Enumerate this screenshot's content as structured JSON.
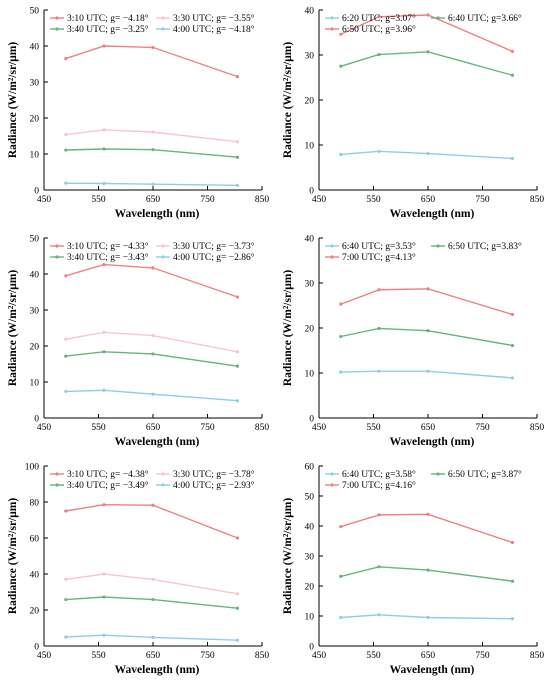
{
  "colors": {
    "red": "#f08080",
    "pink": "#f7c6cc",
    "green": "#6ab27e",
    "blue": "#8ecde6"
  },
  "chart_data": [
    {
      "type": "line",
      "xlabel": "Wavelength (nm)",
      "ylabel": "Radiance (W/m²/sr/μm)",
      "xlim": [
        450,
        850
      ],
      "ylim": [
        0,
        50
      ],
      "xticks": [
        450,
        550,
        650,
        750,
        850
      ],
      "yticks": [
        0,
        10,
        20,
        30,
        40,
        50
      ],
      "x": [
        490,
        560,
        650,
        805
      ],
      "legend_cols": 2,
      "series": [
        {
          "name": "3:10 UTC; g= −4.18°",
          "color": "#f08080",
          "values": [
            36.5,
            40.0,
            39.6,
            31.5
          ]
        },
        {
          "name": "3:30 UTC; g= −3.55°",
          "color": "#f7c6cc",
          "values": [
            15.4,
            16.7,
            16.1,
            13.4
          ]
        },
        {
          "name": "3:40 UTC; g= −3.25°",
          "color": "#6ab27e",
          "values": [
            11.1,
            11.4,
            11.2,
            9.1
          ]
        },
        {
          "name": "4:00 UTC; g= −4.18°",
          "color": "#8ecde6",
          "values": [
            1.9,
            1.8,
            1.6,
            1.3
          ]
        }
      ]
    },
    {
      "type": "line",
      "xlabel": "Wavelength (nm)",
      "ylabel": "Radiance (W/m²/sr/μm)",
      "xlim": [
        450,
        850
      ],
      "ylim": [
        0,
        40
      ],
      "xticks": [
        450,
        550,
        650,
        750,
        850
      ],
      "yticks": [
        0,
        10,
        20,
        30,
        40
      ],
      "x": [
        490,
        560,
        650,
        805
      ],
      "legend_cols": 2,
      "series": [
        {
          "name": "6:20 UTC; g=3.07°",
          "color": "#8ecde6",
          "values": [
            7.9,
            8.6,
            8.1,
            7.0
          ]
        },
        {
          "name": "6:40 UTC; g=3.66°",
          "color": "#6ab27e",
          "values": [
            27.5,
            30.1,
            30.7,
            25.5
          ]
        },
        {
          "name": "6:50 UTC; g=3.96°",
          "color": "#f08080",
          "values": [
            34.6,
            38.5,
            38.9,
            30.8
          ]
        }
      ]
    },
    {
      "type": "line",
      "xlabel": "Wavelength (nm)",
      "ylabel": "Radiance (W/m²/sr/μm)",
      "xlim": [
        450,
        850
      ],
      "ylim": [
        0,
        50
      ],
      "xticks": [
        450,
        550,
        650,
        750,
        850
      ],
      "yticks": [
        0,
        10,
        20,
        30,
        40,
        50
      ],
      "x": [
        490,
        560,
        650,
        805
      ],
      "legend_cols": 2,
      "series": [
        {
          "name": "3:10 UTC; g= −4.33°",
          "color": "#f08080",
          "values": [
            39.5,
            42.6,
            41.7,
            33.6
          ]
        },
        {
          "name": "3:30 UTC; g= −3.73°",
          "color": "#f7c6cc",
          "values": [
            21.9,
            23.8,
            22.9,
            18.4
          ]
        },
        {
          "name": "3:40 UTC; g= −3.43°",
          "color": "#6ab27e",
          "values": [
            17.2,
            18.4,
            17.8,
            14.4
          ]
        },
        {
          "name": "4:00 UTC; g= −2.86°",
          "color": "#8ecde6",
          "values": [
            7.4,
            7.7,
            6.6,
            4.8
          ]
        }
      ]
    },
    {
      "type": "line",
      "xlabel": "Wavelength (nm)",
      "ylabel": "Radiance (W/m²/sr/μm)",
      "xlim": [
        450,
        850
      ],
      "ylim": [
        0,
        40
      ],
      "xticks": [
        450,
        550,
        650,
        750,
        850
      ],
      "yticks": [
        0,
        10,
        20,
        30,
        40
      ],
      "x": [
        490,
        560,
        650,
        805
      ],
      "legend_cols": 2,
      "series": [
        {
          "name": "6:40 UTC; g=3.53°",
          "color": "#8ecde6",
          "values": [
            10.2,
            10.4,
            10.4,
            8.9
          ]
        },
        {
          "name": "6:50 UTC; g=3.83°",
          "color": "#6ab27e",
          "values": [
            18.1,
            19.9,
            19.4,
            16.1
          ]
        },
        {
          "name": "7:00 UTC; g=4.13°",
          "color": "#f08080",
          "values": [
            25.3,
            28.5,
            28.7,
            23.0
          ]
        }
      ]
    },
    {
      "type": "line",
      "xlabel": "Wavelength (nm)",
      "ylabel": "Radiance (W/m²/sr/μm)",
      "xlim": [
        450,
        850
      ],
      "ylim": [
        0,
        100
      ],
      "xticks": [
        450,
        550,
        650,
        750,
        850
      ],
      "yticks": [
        0,
        20,
        40,
        60,
        80,
        100
      ],
      "x": [
        490,
        560,
        650,
        805
      ],
      "legend_cols": 2,
      "series": [
        {
          "name": "3:10 UTC; g= −4.38°",
          "color": "#f08080",
          "values": [
            75.0,
            78.5,
            78.2,
            60.0
          ]
        },
        {
          "name": "3:30 UTC; g= −3.78°",
          "color": "#f7c6cc",
          "values": [
            37.0,
            40.0,
            37.0,
            29.0
          ]
        },
        {
          "name": "3:40 UTC; g= −3.49°",
          "color": "#6ab27e",
          "values": [
            25.8,
            27.2,
            25.8,
            21.0
          ]
        },
        {
          "name": "4:00 UTC; g= −2.93°",
          "color": "#8ecde6",
          "values": [
            5.0,
            6.0,
            4.8,
            3.2
          ]
        }
      ]
    },
    {
      "type": "line",
      "xlabel": "Wavelength (nm)",
      "ylabel": "Radiance (W/m²/sr/μm)",
      "xlim": [
        450,
        850
      ],
      "ylim": [
        0,
        60
      ],
      "xticks": [
        450,
        550,
        650,
        750,
        850
      ],
      "yticks": [
        0,
        10,
        20,
        30,
        40,
        50,
        60
      ],
      "x": [
        490,
        560,
        650,
        805
      ],
      "legend_cols": 2,
      "series": [
        {
          "name": "6:40 UTC; g=3.58°",
          "color": "#8ecde6",
          "values": [
            9.5,
            10.4,
            9.5,
            9.1
          ]
        },
        {
          "name": "6:50 UTC; g=3.87°",
          "color": "#6ab27e",
          "values": [
            23.2,
            26.4,
            25.3,
            21.6
          ]
        },
        {
          "name": "7:00 UTC; g=4.16°",
          "color": "#f08080",
          "values": [
            39.8,
            43.7,
            43.9,
            34.5
          ]
        }
      ]
    }
  ]
}
